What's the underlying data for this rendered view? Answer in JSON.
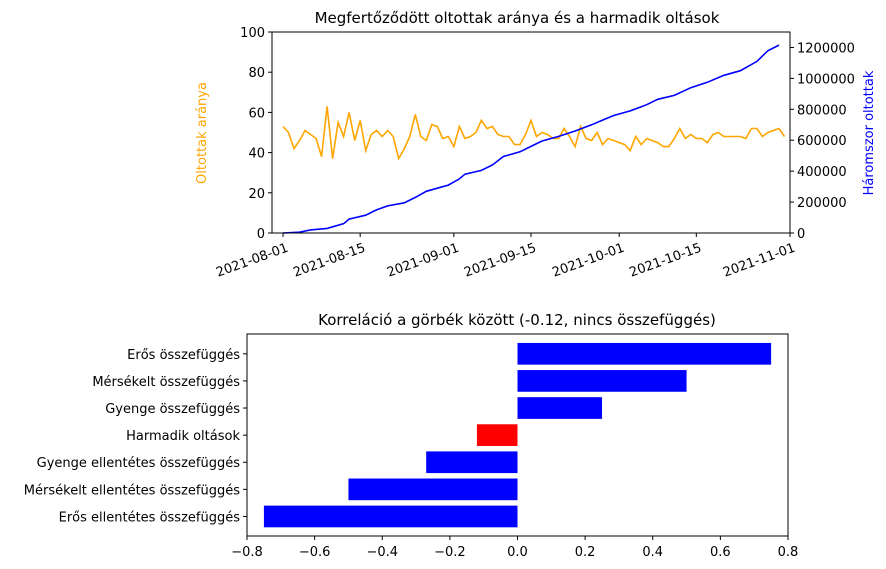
{
  "chart_data": [
    {
      "type": "line",
      "title": "Megfertőződött oltottak aránya és a harmadik oltások",
      "ylabel_left": "Oltottak aránya",
      "ylabel_right": "Háromszor oltottak",
      "ylim_left": [
        0,
        100
      ],
      "ylim_right": [
        0,
        1300000
      ],
      "yticks_left": [
        0,
        20,
        40,
        60,
        80,
        100
      ],
      "yticks_right": [
        0,
        200000,
        400000,
        600000,
        800000,
        1000000,
        1200000
      ],
      "xlim": [
        "2021-07-30",
        "2021-11-01"
      ],
      "xticks": [
        "2021-08-01",
        "2021-08-15",
        "2021-09-01",
        "2021-09-15",
        "2021-10-01",
        "2021-10-15",
        "2021-11-01"
      ],
      "grid": false,
      "colors": {
        "left_series": "#ffa500",
        "right_series": "#0000ff",
        "left_axis_label": "#ffa500",
        "right_axis_label": "#0000ff"
      },
      "series": [
        {
          "name": "",
          "axis": "left",
          "x_start": "2021-08-01",
          "x_step_days": 1,
          "values": [
            53,
            50,
            42,
            46,
            51,
            49,
            47,
            38,
            63,
            37,
            55,
            48,
            60,
            46,
            56,
            41,
            49,
            51,
            48,
            51,
            48,
            37,
            42,
            48,
            59,
            48,
            46,
            54,
            53,
            47,
            48,
            43,
            53,
            47,
            48,
            50,
            56,
            52,
            53,
            49,
            48,
            48,
            44,
            44,
            49,
            56,
            48,
            50,
            49,
            47,
            47,
            52,
            48,
            43,
            53,
            47,
            46,
            50,
            44,
            47,
            46,
            45,
            44,
            41,
            48,
            44,
            47,
            46,
            45,
            43,
            43,
            47,
            52,
            47,
            49,
            47,
            47,
            45,
            49,
            50,
            48,
            48,
            48,
            48,
            47,
            52,
            52,
            48,
            50,
            51,
            52,
            48
          ]
        },
        {
          "name": "",
          "axis": "right",
          "points": [
            [
              "2021-08-01",
              0
            ],
            [
              "2021-08-04",
              5000
            ],
            [
              "2021-08-06",
              20000
            ],
            [
              "2021-08-09",
              30000
            ],
            [
              "2021-08-12",
              60000
            ],
            [
              "2021-08-13",
              90000
            ],
            [
              "2021-08-16",
              115000
            ],
            [
              "2021-08-18",
              150000
            ],
            [
              "2021-08-20",
              175000
            ],
            [
              "2021-08-23",
              195000
            ],
            [
              "2021-08-25",
              230000
            ],
            [
              "2021-08-27",
              270000
            ],
            [
              "2021-08-29",
              290000
            ],
            [
              "2021-08-31",
              310000
            ],
            [
              "2021-09-02",
              350000
            ],
            [
              "2021-09-03",
              380000
            ],
            [
              "2021-09-06",
              405000
            ],
            [
              "2021-09-08",
              440000
            ],
            [
              "2021-09-10",
              495000
            ],
            [
              "2021-09-13",
              525000
            ],
            [
              "2021-09-15",
              560000
            ],
            [
              "2021-09-17",
              595000
            ],
            [
              "2021-09-20",
              625000
            ],
            [
              "2021-09-23",
              660000
            ],
            [
              "2021-09-26",
              700000
            ],
            [
              "2021-09-28",
              730000
            ],
            [
              "2021-09-30",
              760000
            ],
            [
              "2021-10-03",
              790000
            ],
            [
              "2021-10-06",
              830000
            ],
            [
              "2021-10-08",
              865000
            ],
            [
              "2021-10-11",
              890000
            ],
            [
              "2021-10-14",
              940000
            ],
            [
              "2021-10-17",
              975000
            ],
            [
              "2021-10-20",
              1020000
            ],
            [
              "2021-10-23",
              1050000
            ],
            [
              "2021-10-26",
              1110000
            ],
            [
              "2021-10-28",
              1180000
            ],
            [
              "2021-10-30",
              1215000
            ]
          ]
        }
      ]
    },
    {
      "type": "bar",
      "orientation": "horizontal",
      "title": "Korreláció a görbék között (-0.12, nincs összefüggés)",
      "categories": [
        "Erős ellentétes összefüggés",
        "Mérsékelt ellentétes összefüggés",
        "Gyenge ellentétes összefüggés",
        "Harmadik oltások",
        "Gyenge összefüggés",
        "Mérsékelt összefüggés",
        "Erős összefüggés"
      ],
      "values": [
        -0.75,
        -0.5,
        -0.27,
        -0.12,
        0.25,
        0.5,
        0.75
      ],
      "colors": [
        "#0000ff",
        "#0000ff",
        "#0000ff",
        "#ff0000",
        "#0000ff",
        "#0000ff",
        "#0000ff"
      ],
      "xlim": [
        -0.8,
        0.8
      ],
      "xticks": [
        "−0.8",
        "−0.6",
        "−0.4",
        "−0.2",
        "0.0",
        "0.2",
        "0.4",
        "0.6",
        "0.8"
      ],
      "grid": false
    }
  ]
}
